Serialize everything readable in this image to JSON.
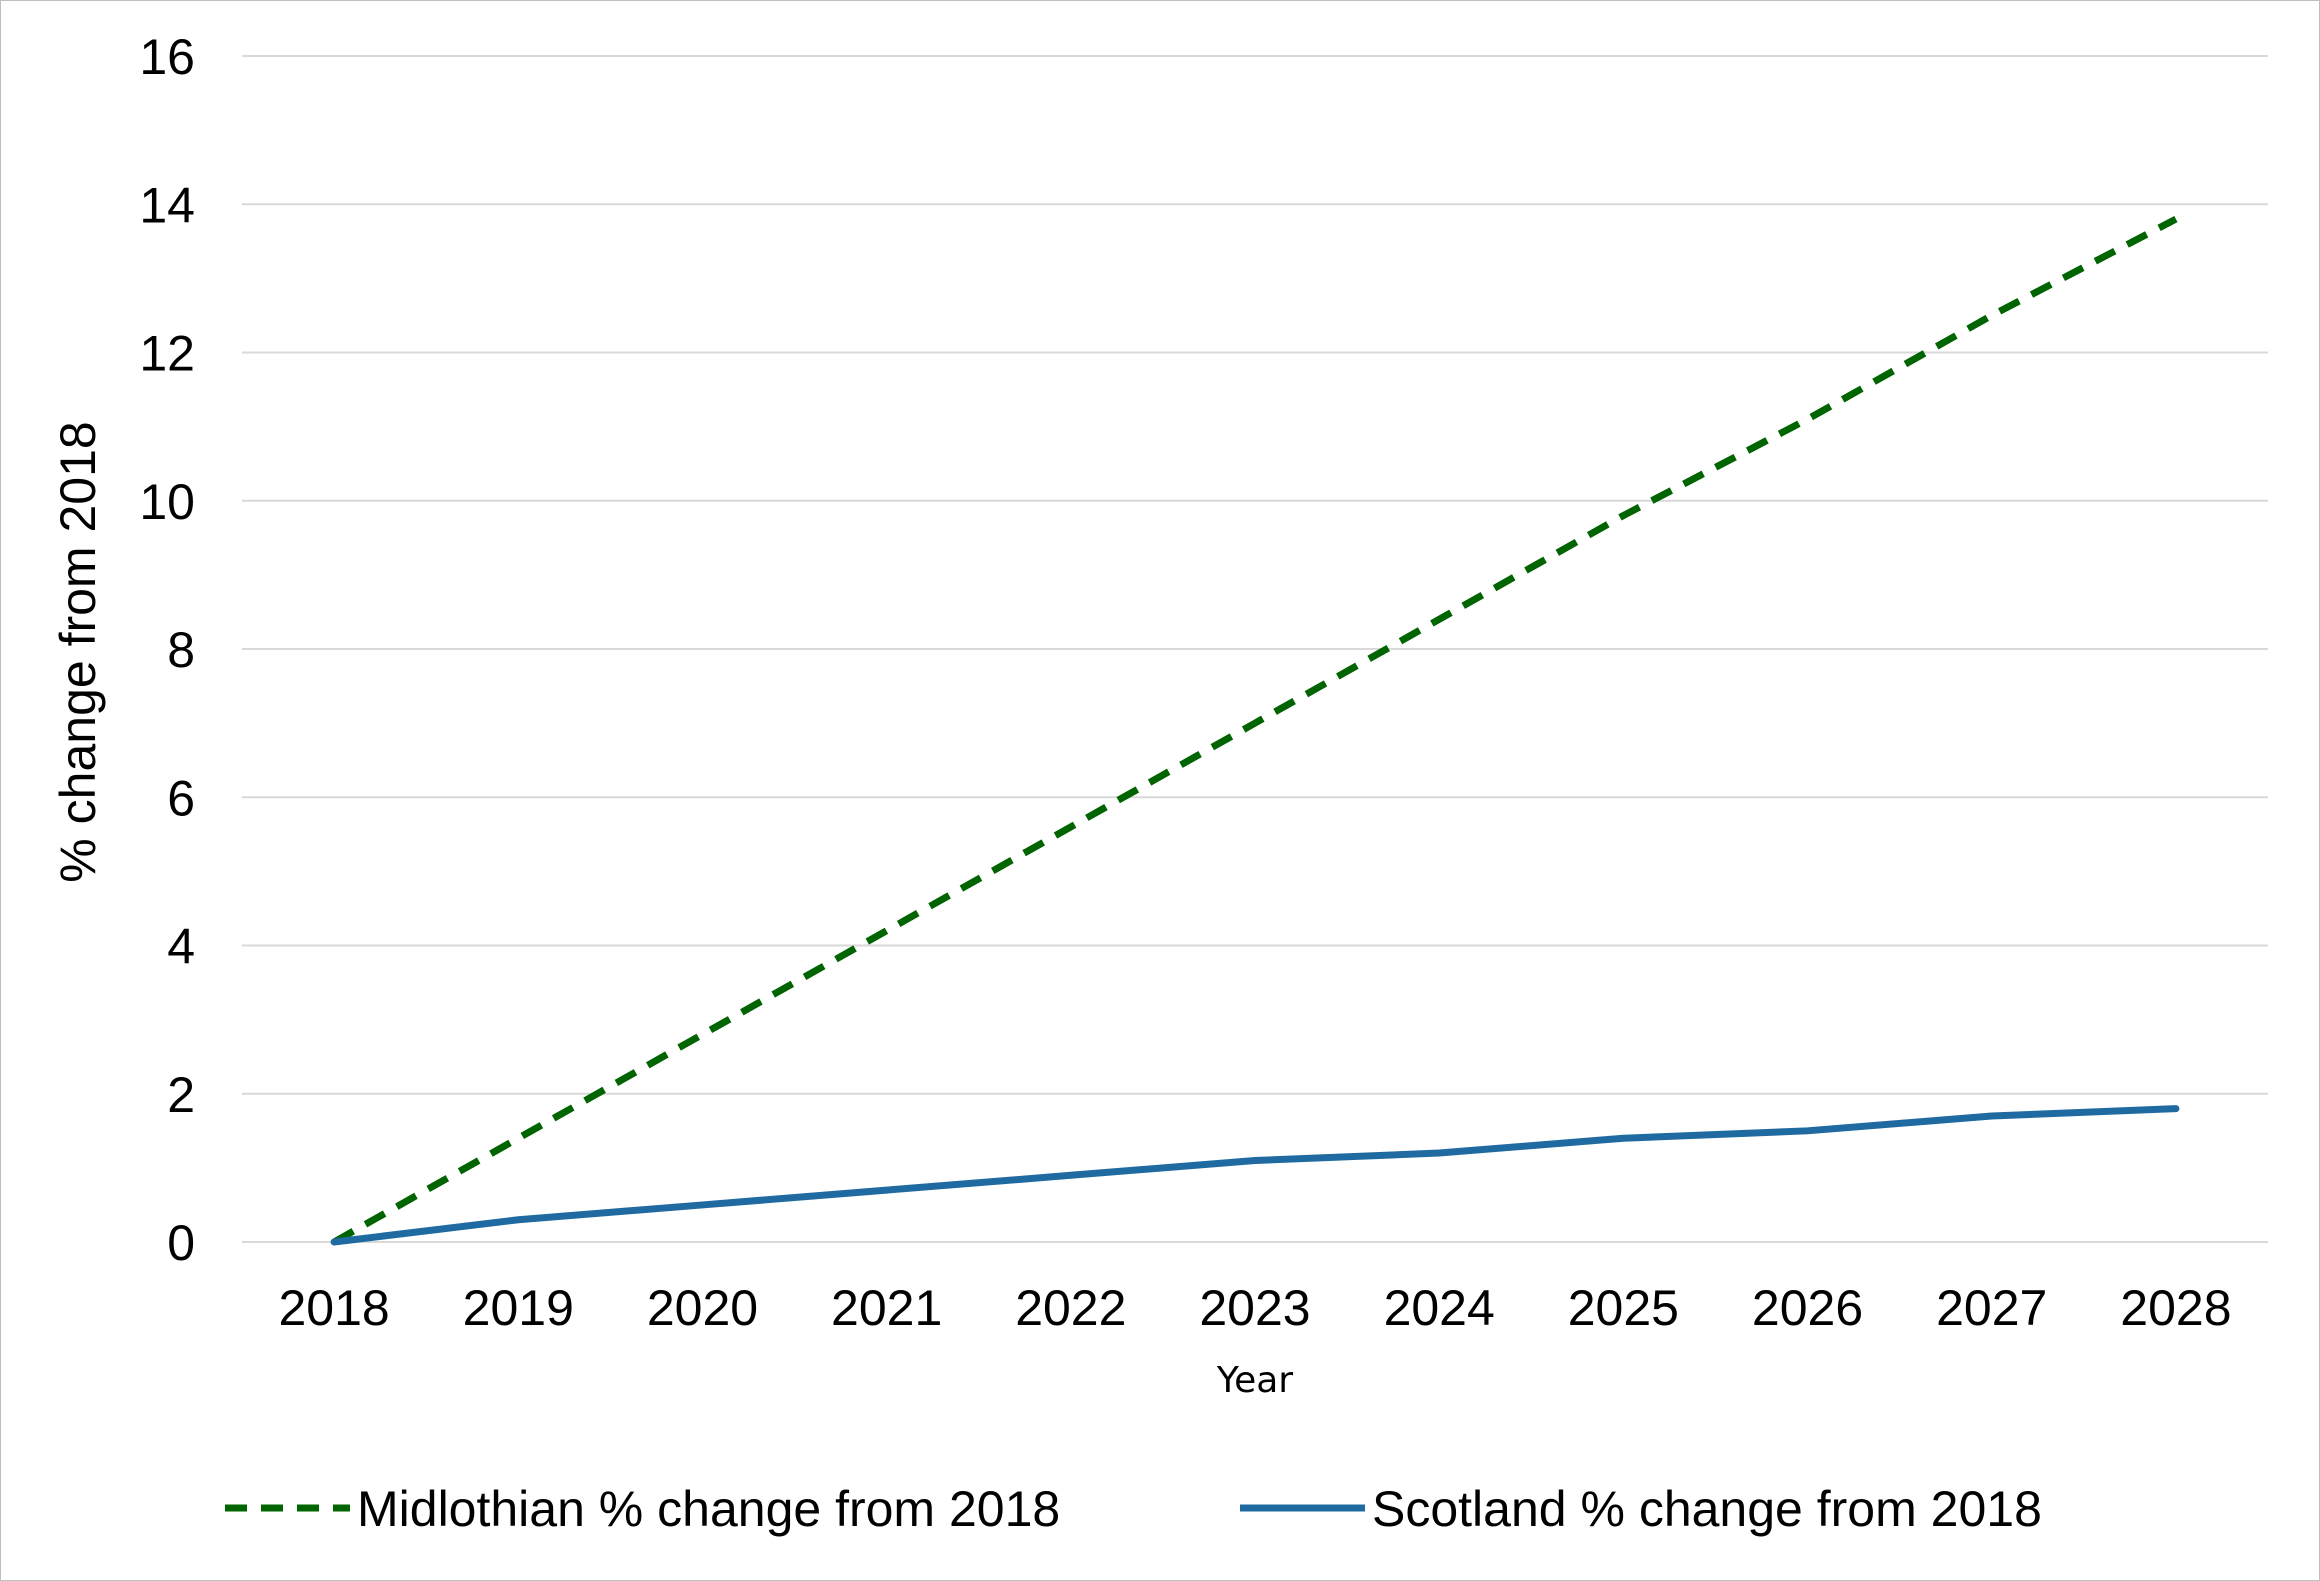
{
  "chart_data": {
    "type": "line",
    "title": "",
    "xlabel": "Year",
    "ylabel": "% change from 2018",
    "categories": [
      "2018",
      "2019",
      "2020",
      "2021",
      "2022",
      "2023",
      "2024",
      "2025",
      "2026",
      "2027",
      "2028"
    ],
    "ylim": [
      0,
      16
    ],
    "yticks": [
      0,
      2,
      4,
      6,
      8,
      10,
      12,
      14,
      16
    ],
    "grid": true,
    "legend_position": "bottom",
    "series": [
      {
        "name": "Midlothian % change from 2018",
        "values": [
          0,
          1.4,
          2.8,
          4.2,
          5.6,
          7.0,
          8.4,
          9.8,
          11.1,
          12.5,
          13.8
        ],
        "color": "#006400",
        "style": "dashed"
      },
      {
        "name": "Scotland % change from 2018",
        "values": [
          0,
          0.3,
          0.5,
          0.7,
          0.9,
          1.1,
          1.2,
          1.4,
          1.5,
          1.7,
          1.8
        ],
        "color": "#1f6aa0",
        "style": "solid"
      }
    ],
    "gridline_color": "#d9d9d9"
  }
}
